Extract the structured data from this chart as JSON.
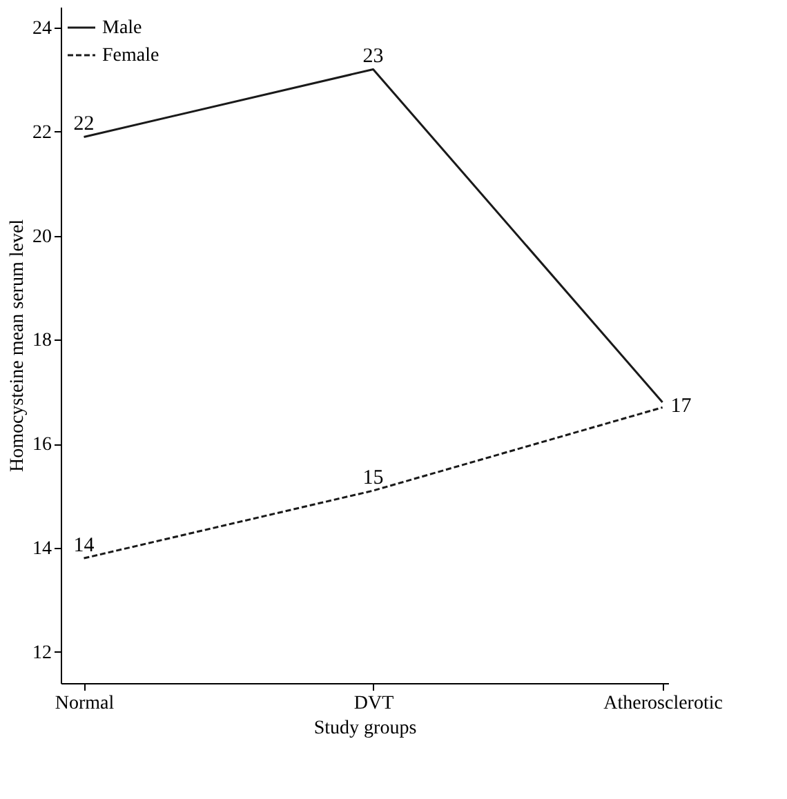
{
  "chart_data": {
    "type": "line",
    "xlabel": "Study groups",
    "ylabel": "Homocysteine mean serum level",
    "categories": [
      "Normal",
      "DVT",
      "Atherosclerotic"
    ],
    "series": [
      {
        "name": "Male",
        "color": "#1a1a1a",
        "line_style": "solid",
        "values": [
          21.9,
          23.2,
          16.8
        ],
        "value_labels": [
          "22",
          "23",
          "17"
        ]
      },
      {
        "name": "Female",
        "color": "#1a1a1a",
        "line_style": "dashed",
        "values": [
          13.8,
          15.1,
          16.7
        ],
        "value_labels": [
          "14",
          "15",
          null
        ]
      }
    ],
    "ylim": [
      11.4,
      24.4
    ],
    "yticks": [
      12,
      14,
      16,
      18,
      20,
      22,
      24
    ],
    "grid": false,
    "legend": "top left",
    "marker": "none"
  }
}
